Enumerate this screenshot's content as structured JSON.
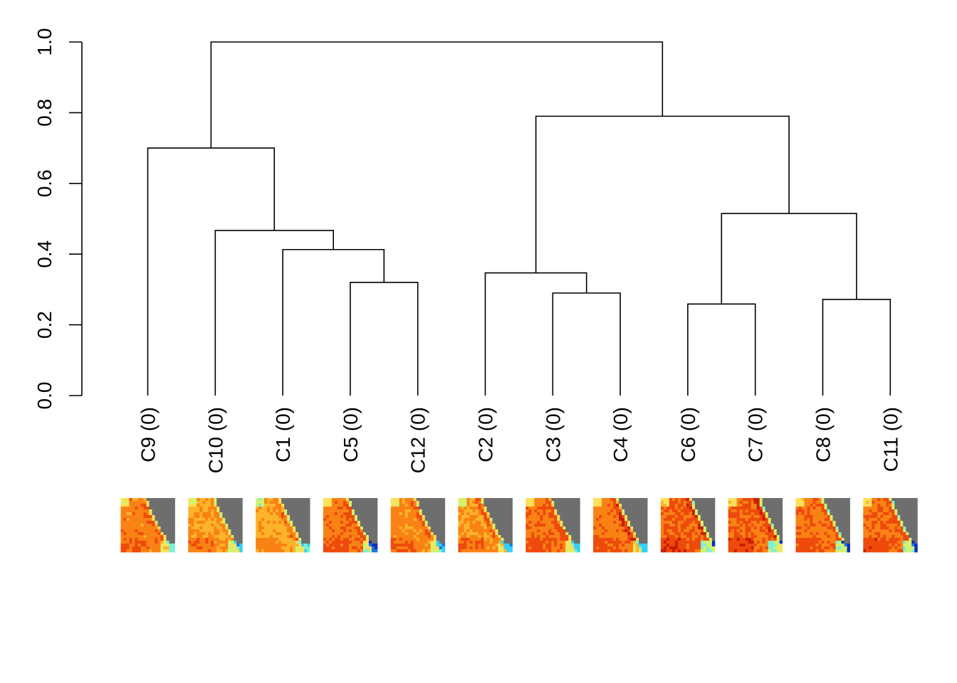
{
  "y_axis": {
    "ticks": [
      {
        "value": 0.0,
        "label": "0.0"
      },
      {
        "value": 0.2,
        "label": "0.2"
      },
      {
        "value": 0.4,
        "label": "0.4"
      },
      {
        "value": 0.6,
        "label": "0.6"
      },
      {
        "value": 0.8,
        "label": "0.8"
      },
      {
        "value": 1.0,
        "label": "1.0"
      }
    ],
    "range": [
      0.0,
      1.0
    ]
  },
  "leaves": [
    {
      "label": "C9 (0)"
    },
    {
      "label": "C10 (0)"
    },
    {
      "label": "C1 (0)"
    },
    {
      "label": "C5 (0)"
    },
    {
      "label": "C12 (0)"
    },
    {
      "label": "C2 (0)"
    },
    {
      "label": "C3 (0)"
    },
    {
      "label": "C4 (0)"
    },
    {
      "label": "C6 (0)"
    },
    {
      "label": "C7 (0)"
    },
    {
      "label": "C8 (0)"
    },
    {
      "label": "C11 (0)"
    }
  ],
  "merges": [
    {
      "a": "L3",
      "b": "L4",
      "height": 0.32
    },
    {
      "a": "L2",
      "b": "M0",
      "height": 0.413
    },
    {
      "a": "L1",
      "b": "M1",
      "height": 0.467
    },
    {
      "a": "L0",
      "b": "M2",
      "height": 0.7
    },
    {
      "a": "L6",
      "b": "L7",
      "height": 0.29
    },
    {
      "a": "L5",
      "b": "M4",
      "height": 0.347
    },
    {
      "a": "L8",
      "b": "L9",
      "height": 0.259
    },
    {
      "a": "L10",
      "b": "L11",
      "height": 0.272
    },
    {
      "a": "M6",
      "b": "M7",
      "height": 0.515
    },
    {
      "a": "M5",
      "b": "M8",
      "height": 0.79
    },
    {
      "a": "M3",
      "b": "M9",
      "height": 1.0
    }
  ],
  "thumbnails": {
    "land_color": "#6e6e6e",
    "palette": [
      "#8b0000",
      "#c81e00",
      "#ee4a0c",
      "#f98214",
      "#fdb32a",
      "#fee05a",
      "#d3f26d",
      "#7ff0d2",
      "#33d0f5",
      "#1a78e8",
      "#0a2fb8"
    ],
    "tiles": [
      {
        "leaf": "C9 (0)",
        "base": 3,
        "coast_shift": 0.0,
        "hot": 0.35,
        "cool_edge": 0.45
      },
      {
        "leaf": "C10 (0)",
        "base": 3.6,
        "coast_shift": 0.02,
        "hot": 0.3,
        "cool_edge": 0.5
      },
      {
        "leaf": "C1 (0)",
        "base": 3.8,
        "coast_shift": -0.02,
        "hot": 0.55,
        "cool_edge": 0.4
      },
      {
        "leaf": "C5 (0)",
        "base": 2.9,
        "coast_shift": 0.0,
        "hot": 0.4,
        "cool_edge": 0.7
      },
      {
        "leaf": "C12 (0)",
        "base": 3.1,
        "coast_shift": 0.0,
        "hot": 0.45,
        "cool_edge": 0.55
      },
      {
        "leaf": "C2 (0)",
        "base": 3.4,
        "coast_shift": -0.03,
        "hot": 0.65,
        "cool_edge": 0.5
      },
      {
        "leaf": "C3 (0)",
        "base": 2.8,
        "coast_shift": 0.0,
        "hot": 0.45,
        "cool_edge": 0.55
      },
      {
        "leaf": "C4 (0)",
        "base": 2.9,
        "coast_shift": -0.02,
        "hot": 0.7,
        "cool_edge": 0.55
      },
      {
        "leaf": "C6 (0)",
        "base": 2.4,
        "coast_shift": 0.1,
        "hot": 0.6,
        "cool_edge": 0.85
      },
      {
        "leaf": "C7 (0)",
        "base": 2.5,
        "coast_shift": 0.12,
        "hot": 0.7,
        "cool_edge": 0.85
      },
      {
        "leaf": "C8 (0)",
        "base": 2.8,
        "coast_shift": 0.04,
        "hot": 0.4,
        "cool_edge": 0.75
      },
      {
        "leaf": "C11 (0)",
        "base": 2.7,
        "coast_shift": 0.05,
        "hot": 0.45,
        "cool_edge": 0.8
      }
    ]
  }
}
